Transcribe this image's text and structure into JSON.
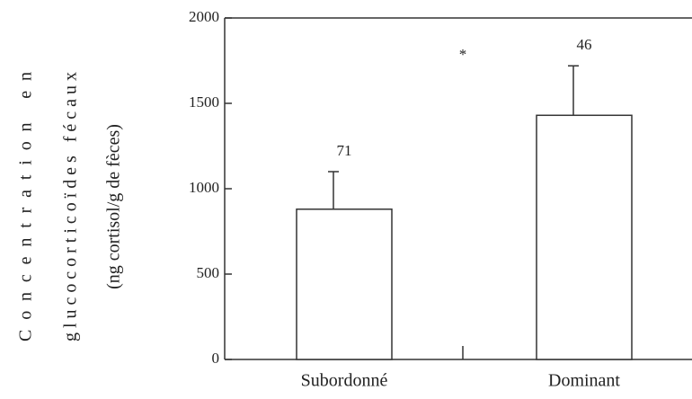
{
  "chart_data": {
    "type": "bar",
    "ylabel_lines": [
      "Concentration en",
      "glucocorticoïdes fécaux",
      "(ng cortisol/g de fèces)"
    ],
    "categories": [
      "Subordonné",
      "Dominant"
    ],
    "values": [
      880,
      1430
    ],
    "errors": [
      220,
      290
    ],
    "bar_labels": [
      "71",
      "46"
    ],
    "annotations": [
      "*"
    ],
    "color": "#ffffff",
    "ylim": [
      0,
      2000
    ],
    "yticks": [
      0,
      500,
      1000,
      1500,
      2000
    ],
    "grid": false
  }
}
